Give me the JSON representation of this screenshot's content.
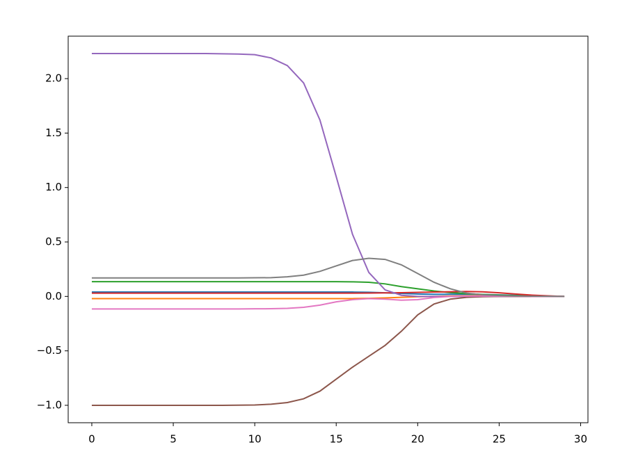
{
  "chart_data": {
    "type": "line",
    "x": [
      0,
      1,
      2,
      3,
      4,
      5,
      6,
      7,
      8,
      9,
      10,
      11,
      12,
      13,
      14,
      15,
      16,
      17,
      18,
      19,
      20,
      21,
      22,
      23,
      24,
      25,
      26,
      27,
      28,
      29
    ],
    "xlim": [
      -1.45,
      30.45
    ],
    "xticks": [
      0,
      5,
      10,
      15,
      20,
      25,
      30
    ],
    "ylim": [
      -1.16,
      2.39
    ],
    "yticks": [
      {
        "value": -1.0,
        "label": "−1.0"
      },
      {
        "value": -0.5,
        "label": "−0.5"
      },
      {
        "value": 0.0,
        "label": "0.0"
      },
      {
        "value": 0.5,
        "label": "0.5"
      },
      {
        "value": 1.0,
        "label": "1.0"
      },
      {
        "value": 1.5,
        "label": "1.5"
      },
      {
        "value": 2.0,
        "label": "2.0"
      }
    ],
    "grid": false,
    "series": [
      {
        "color": "#1f77b4",
        "values": [
          0.04,
          0.04,
          0.04,
          0.04,
          0.04,
          0.04,
          0.04,
          0.04,
          0.04,
          0.04,
          0.04,
          0.04,
          0.04,
          0.04,
          0.04,
          0.04,
          0.04,
          0.038,
          0.033,
          0.027,
          0.022,
          0.02,
          0.02,
          0.02,
          0.018,
          0.014,
          0.01,
          0.006,
          0.003,
          0.0
        ]
      },
      {
        "color": "#ff7f0e",
        "values": [
          -0.02,
          -0.02,
          -0.02,
          -0.02,
          -0.02,
          -0.02,
          -0.02,
          -0.02,
          -0.02,
          -0.02,
          -0.02,
          -0.02,
          -0.02,
          -0.02,
          -0.02,
          -0.02,
          -0.02,
          -0.018,
          -0.014,
          -0.008,
          -0.003,
          0.0,
          0.004,
          0.006,
          0.006,
          0.005,
          0.004,
          0.002,
          0.001,
          0.0
        ]
      },
      {
        "color": "#2ca02c",
        "values": [
          0.135,
          0.135,
          0.135,
          0.135,
          0.135,
          0.135,
          0.135,
          0.135,
          0.135,
          0.135,
          0.135,
          0.135,
          0.135,
          0.135,
          0.135,
          0.135,
          0.134,
          0.13,
          0.115,
          0.09,
          0.07,
          0.05,
          0.035,
          0.025,
          0.018,
          0.012,
          0.007,
          0.004,
          0.002,
          0.0
        ]
      },
      {
        "color": "#d62728",
        "values": [
          0.03,
          0.03,
          0.03,
          0.03,
          0.03,
          0.03,
          0.03,
          0.03,
          0.03,
          0.03,
          0.03,
          0.03,
          0.03,
          0.03,
          0.03,
          0.03,
          0.03,
          0.031,
          0.032,
          0.034,
          0.037,
          0.04,
          0.043,
          0.045,
          0.042,
          0.033,
          0.022,
          0.012,
          0.005,
          0.0
        ]
      },
      {
        "color": "#9467bd",
        "values": [
          2.23,
          2.23,
          2.23,
          2.23,
          2.23,
          2.23,
          2.23,
          2.23,
          2.228,
          2.226,
          2.22,
          2.19,
          2.12,
          1.96,
          1.62,
          1.1,
          0.57,
          0.22,
          0.06,
          0.01,
          0.0,
          0.0,
          0.0,
          0.0,
          0.0,
          0.0,
          0.0,
          0.0,
          0.0,
          0.0
        ]
      },
      {
        "color": "#8c564b",
        "values": [
          -1.0,
          -1.0,
          -1.0,
          -1.0,
          -1.0,
          -1.0,
          -1.0,
          -1.0,
          -1.0,
          -0.999,
          -0.997,
          -0.99,
          -0.975,
          -0.94,
          -0.87,
          -0.76,
          -0.65,
          -0.55,
          -0.45,
          -0.32,
          -0.17,
          -0.07,
          -0.025,
          -0.008,
          -0.003,
          0.0,
          0.0,
          0.0,
          0.0,
          0.0
        ]
      },
      {
        "color": "#e377c2",
        "values": [
          -0.115,
          -0.115,
          -0.115,
          -0.115,
          -0.115,
          -0.115,
          -0.115,
          -0.115,
          -0.115,
          -0.115,
          -0.114,
          -0.113,
          -0.11,
          -0.1,
          -0.08,
          -0.05,
          -0.03,
          -0.02,
          -0.025,
          -0.035,
          -0.03,
          -0.01,
          0.0,
          0.003,
          0.003,
          0.002,
          0.001,
          0.0,
          0.0,
          0.0
        ]
      },
      {
        "color": "#7f7f7f",
        "values": [
          0.17,
          0.17,
          0.17,
          0.17,
          0.17,
          0.17,
          0.17,
          0.17,
          0.17,
          0.17,
          0.171,
          0.172,
          0.18,
          0.195,
          0.23,
          0.28,
          0.33,
          0.35,
          0.34,
          0.29,
          0.21,
          0.13,
          0.07,
          0.03,
          0.015,
          0.008,
          0.004,
          0.002,
          0.001,
          0.0
        ]
      }
    ]
  }
}
